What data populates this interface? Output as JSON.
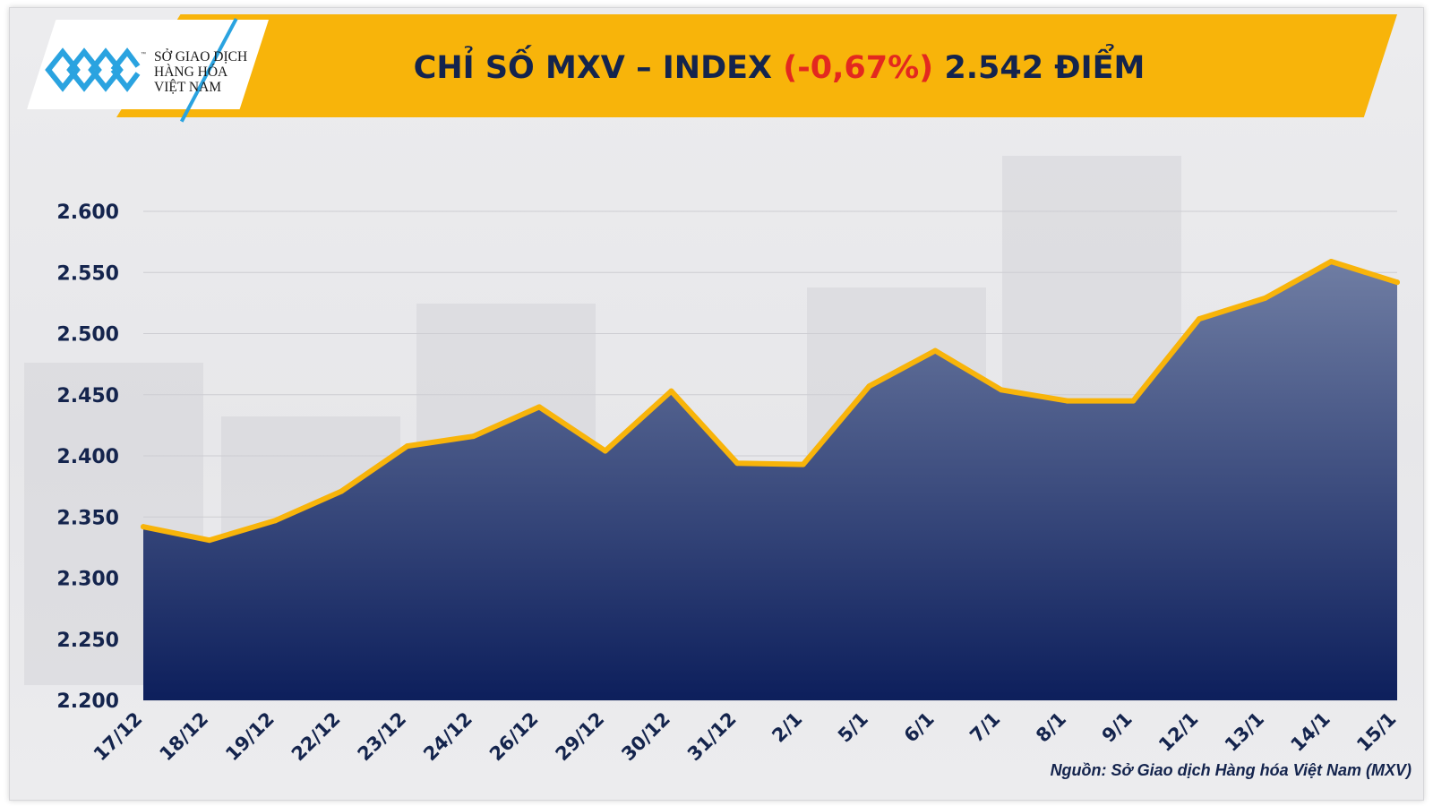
{
  "logo": {
    "line1": "SỞ GIAO DỊCH",
    "line2": "HÀNG HÓA",
    "line3": "VIỆT NAM",
    "tm": "™"
  },
  "colors": {
    "banner": "#f8b40a",
    "title": "#14244d",
    "negative": "#e3281f",
    "line": "#f8b40a",
    "area_top": "#6f7da3",
    "area_bottom": "#0d1f5c"
  },
  "chart_data": {
    "type": "area",
    "title_main": "CHỈ SỐ MXV – INDEX",
    "title_change": "(-0,67%)",
    "title_value": "2.542 ĐIỂM",
    "categories": [
      "17/12",
      "18/12",
      "19/12",
      "22/12",
      "23/12",
      "24/12",
      "26/12",
      "29/12",
      "30/12",
      "31/12",
      "2/1",
      "5/1",
      "6/1",
      "7/1",
      "8/1",
      "9/1",
      "12/1",
      "13/1",
      "14/1",
      "15/1"
    ],
    "values": [
      2342,
      2331,
      2347,
      2371,
      2408,
      2416,
      2440,
      2404,
      2453,
      2394,
      2393,
      2457,
      2486,
      2454,
      2445,
      2445,
      2512,
      2529,
      2559,
      2542
    ],
    "ylim": [
      2200,
      2600
    ],
    "yticks": [
      2200,
      2250,
      2300,
      2350,
      2400,
      2450,
      2500,
      2550,
      2600
    ],
    "ytick_labels": [
      "2.200",
      "2.250",
      "2.300",
      "2.350",
      "2.400",
      "2.450",
      "2.500",
      "2.550",
      "2.600"
    ],
    "grid": true,
    "legend": "none"
  },
  "source": "Nguồn: Sở Giao dịch Hàng hóa Việt Nam (MXV)"
}
